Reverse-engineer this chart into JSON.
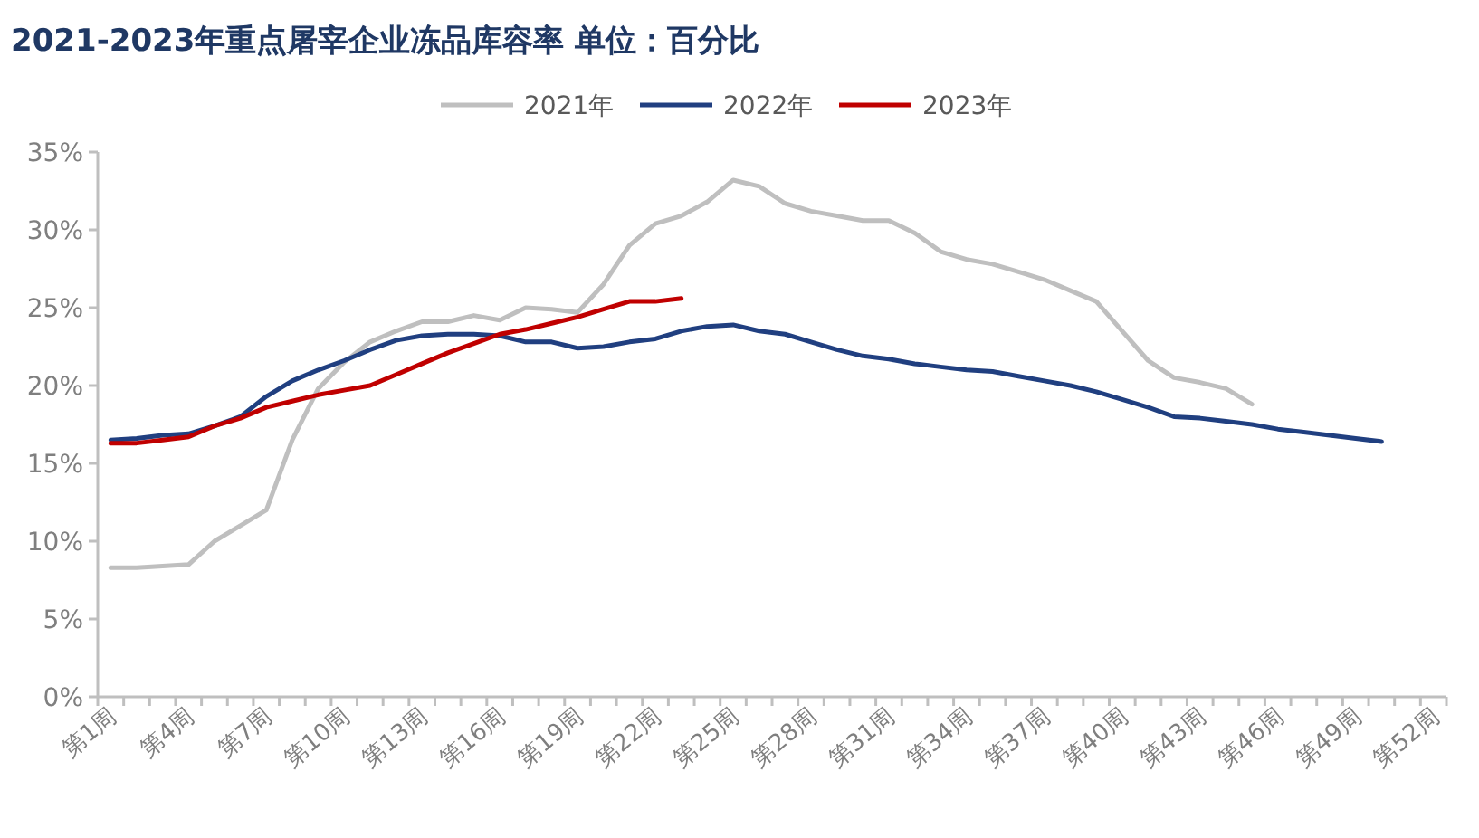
{
  "chart_data": {
    "type": "line",
    "title": "2021-2023年重点屠宰企业冻品库容率 单位：百分比",
    "categories": [
      "第1周",
      null,
      null,
      "第4周",
      null,
      null,
      "第7周",
      null,
      null,
      "第10周",
      null,
      null,
      "第13周",
      null,
      null,
      "第16周",
      null,
      null,
      "第19周",
      null,
      null,
      "第22周",
      null,
      null,
      "第25周",
      null,
      null,
      "第28周",
      null,
      null,
      "第31周",
      null,
      null,
      "第34周",
      null,
      null,
      "第37周",
      null,
      null,
      "第40周",
      null,
      null,
      "第43周",
      null,
      null,
      "第46周",
      null,
      null,
      "第49周",
      null,
      null,
      "第52周"
    ],
    "series": [
      {
        "name": "2021年",
        "color": "#bfbfbf",
        "values": [
          8.3,
          8.3,
          8.4,
          8.5,
          10.0,
          11.0,
          12.0,
          16.5,
          19.8,
          21.5,
          22.8,
          23.5,
          24.1,
          24.1,
          24.5,
          24.2,
          25.0,
          24.9,
          24.7,
          26.5,
          29.0,
          30.4,
          30.9,
          31.8,
          33.2,
          32.8,
          31.7,
          31.2,
          30.9,
          30.6,
          30.6,
          29.8,
          28.6,
          28.1,
          27.8,
          27.3,
          26.8,
          26.1,
          25.4,
          23.5,
          21.6,
          20.5,
          20.2,
          19.8,
          18.8,
          null,
          null,
          null,
          null,
          null,
          null,
          null
        ]
      },
      {
        "name": "2022年",
        "color": "#203f80",
        "values": [
          16.5,
          16.6,
          16.8,
          16.9,
          17.4,
          18.0,
          19.3,
          20.3,
          21.0,
          21.6,
          22.3,
          22.9,
          23.2,
          23.3,
          23.3,
          23.2,
          22.8,
          22.8,
          22.4,
          22.5,
          22.8,
          23.0,
          23.5,
          23.8,
          23.9,
          23.5,
          23.3,
          22.8,
          22.3,
          21.9,
          21.7,
          21.4,
          21.2,
          21.0,
          20.9,
          20.6,
          20.3,
          20.0,
          19.6,
          19.1,
          18.6,
          18.0,
          17.9,
          17.7,
          17.5,
          17.2,
          17.0,
          16.8,
          16.6,
          16.4,
          null,
          null
        ]
      },
      {
        "name": "2023年",
        "color": "#c00000",
        "values": [
          16.3,
          16.3,
          16.5,
          16.7,
          17.4,
          17.9,
          18.6,
          19.0,
          19.4,
          19.7,
          20.0,
          20.7,
          21.4,
          22.1,
          22.7,
          23.3,
          23.6,
          24.0,
          24.4,
          24.9,
          25.4,
          25.4,
          25.6,
          null,
          null,
          null,
          null,
          null,
          null,
          null,
          null,
          null,
          null,
          null,
          null,
          null,
          null,
          null,
          null,
          null,
          null,
          null,
          null,
          null,
          null,
          null,
          null,
          null,
          null,
          null,
          null,
          null
        ]
      }
    ],
    "ylim": [
      0,
      35
    ],
    "yticks": [
      {
        "value": 0,
        "label": "0%"
      },
      {
        "value": 5,
        "label": "5%"
      },
      {
        "value": 10,
        "label": "10%"
      },
      {
        "value": 15,
        "label": "15%"
      },
      {
        "value": 20,
        "label": "20%"
      },
      {
        "value": 25,
        "label": "25%"
      },
      {
        "value": 30,
        "label": "30%"
      },
      {
        "value": 35,
        "label": "35%"
      }
    ],
    "grid": false,
    "legend": "top",
    "marker": "none",
    "line_style": "solid"
  }
}
